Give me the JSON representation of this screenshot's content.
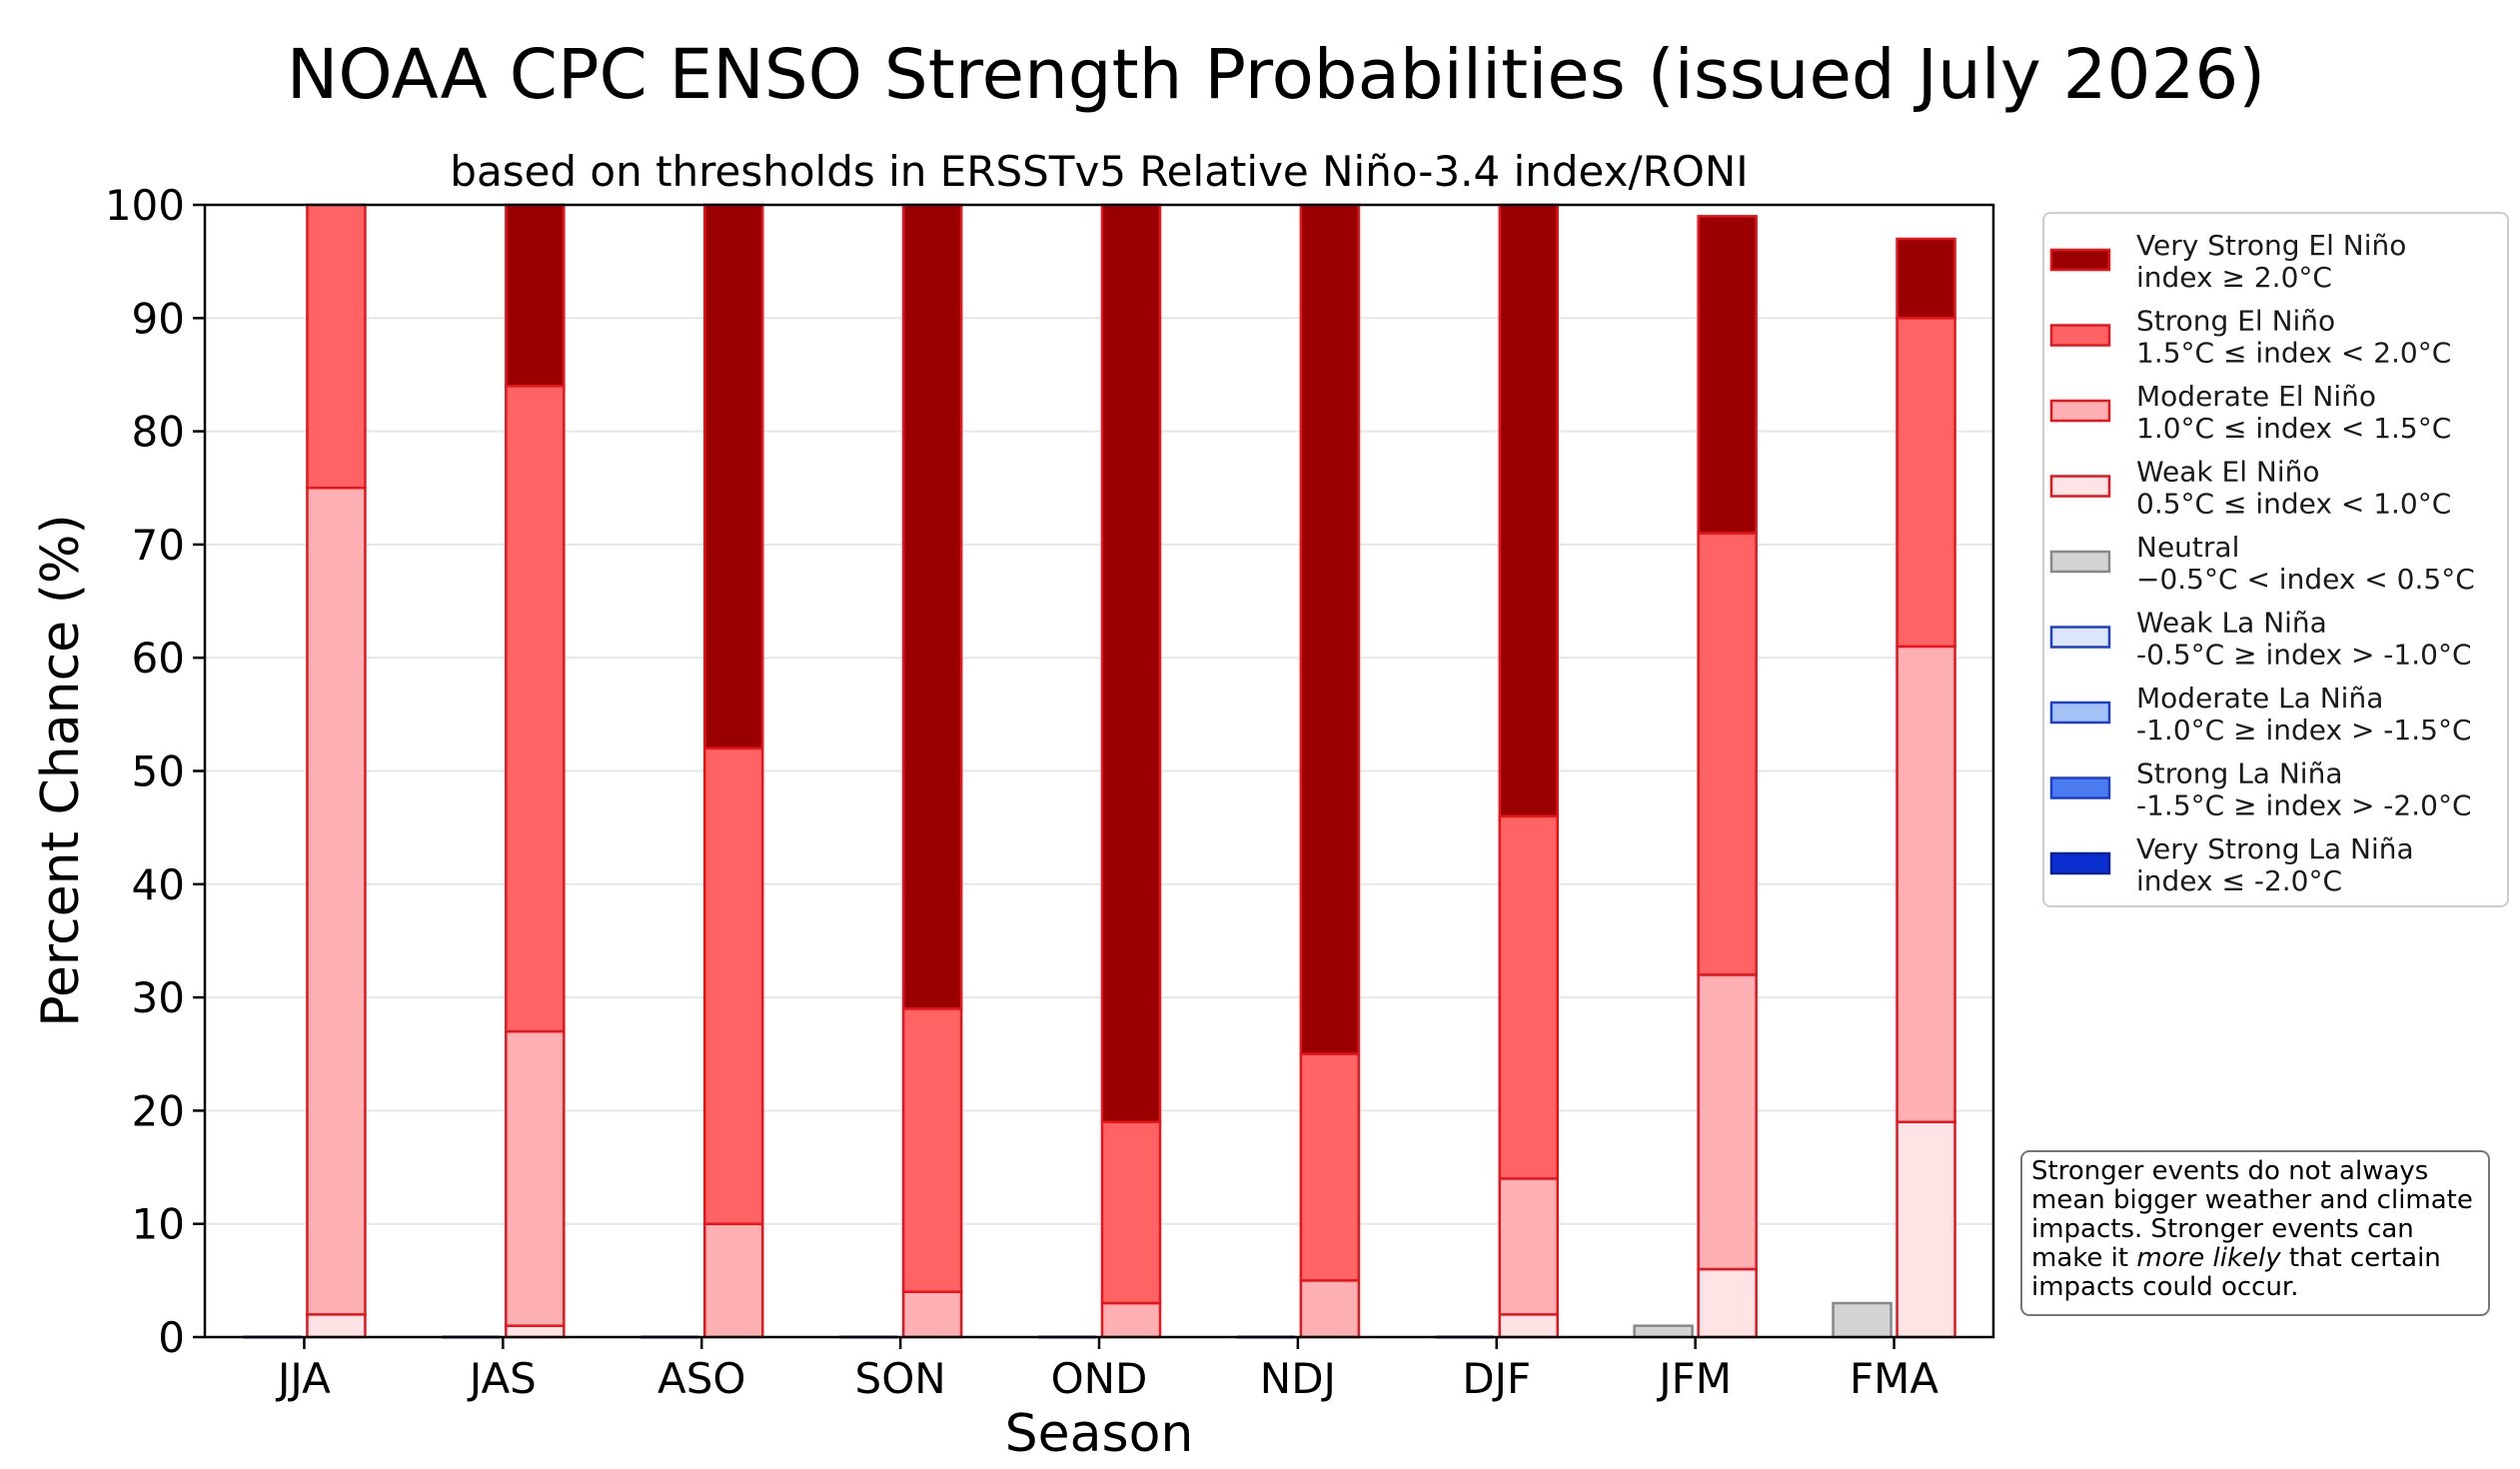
{
  "chart_data": {
    "type": "bar",
    "title": "NOAA CPC ENSO Strength Probabilities (issued July 2026)",
    "subtitle": "based on thresholds in ERSSTv5 Relative Niño-3.4 index/RONI",
    "xlabel": "Season",
    "ylabel": "Percent Chance (%)",
    "ylim": [
      0,
      100
    ],
    "yticks": [
      "0",
      "10",
      "20",
      "30",
      "40",
      "50",
      "60",
      "70",
      "80",
      "90",
      "100"
    ],
    "grid": true,
    "legend_position": "right",
    "categories": [
      "JJA",
      "JAS",
      "ASO",
      "SON",
      "OND",
      "NDJ",
      "DJF",
      "JFM",
      "FMA"
    ],
    "stack_groups": [
      {
        "group": "la-nina-neutral",
        "series": [
          {
            "name": "Very Strong La Niña",
            "range": "index ≤ -2.0°C",
            "color": "#0a2fd0",
            "edge": "#0a1f9a",
            "values": [
              0,
              0,
              0,
              0,
              0,
              0,
              0,
              0,
              0
            ]
          },
          {
            "name": "Strong La Niña",
            "range": "-1.5°C ≥ index > -2.0°C",
            "color": "#4a7cf0",
            "edge": "#1a3fcc",
            "values": [
              0,
              0,
              0,
              0,
              0,
              0,
              0,
              0,
              0
            ]
          },
          {
            "name": "Moderate La Niña",
            "range": "-1.0°C ≥ index > -1.5°C",
            "color": "#a4c2f4",
            "edge": "#1a3fcc",
            "values": [
              0,
              0,
              0,
              0,
              0,
              0,
              0,
              0,
              0
            ]
          },
          {
            "name": "Weak La Niña",
            "range": "-0.5°C ≥ index > -1.0°C",
            "color": "#dbe6fb",
            "edge": "#1a3fcc",
            "values": [
              0,
              0,
              0,
              0,
              0,
              0,
              0,
              0,
              0
            ]
          },
          {
            "name": "Neutral",
            "range": "−0.5°C < index < 0.5°C",
            "color": "#d3d3d3",
            "edge": "#888888",
            "values": [
              0,
              0,
              0,
              0,
              0,
              0,
              0,
              1,
              3
            ]
          }
        ]
      },
      {
        "group": "el-nino",
        "series": [
          {
            "name": "Weak El Niño",
            "range": "0.5°C ≤ index < 1.0°C",
            "color": "#ffe4e6",
            "edge": "#e8141c",
            "values": [
              2,
              1,
              0,
              0,
              0,
              0,
              2,
              6,
              19
            ]
          },
          {
            "name": "Moderate El Niño",
            "range": "1.0°C ≤ index < 1.5°C",
            "color": "#ffb0b3",
            "edge": "#e8141c",
            "values": [
              73,
              26,
              10,
              4,
              3,
              5,
              12,
              26,
              42
            ]
          },
          {
            "name": "Strong El Niño",
            "range": "1.5°C ≤ index < 2.0°C",
            "color": "#ff6363",
            "edge": "#e8141c",
            "values": [
              25,
              57,
              42,
              25,
              16,
              20,
              32,
              39,
              29
            ]
          },
          {
            "name": "Very Strong El Niño",
            "range": "index ≥ 2.0°C",
            "color": "#9b0000",
            "edge": "#e8141c",
            "values": [
              0,
              16,
              48,
              71,
              81,
              75,
              54,
              28,
              7
            ]
          }
        ]
      }
    ],
    "legend": [
      {
        "label": "Very Strong El Niño",
        "range": "index ≥ 2.0°C",
        "color": "#9b0000",
        "edge": "#e8141c"
      },
      {
        "label": "Strong El Niño",
        "range": "1.5°C ≤ index < 2.0°C",
        "color": "#ff6363",
        "edge": "#e8141c"
      },
      {
        "label": "Moderate El Niño",
        "range": "1.0°C ≤ index < 1.5°C",
        "color": "#ffb0b3",
        "edge": "#e8141c"
      },
      {
        "label": "Weak El Niño",
        "range": "0.5°C ≤ index < 1.0°C",
        "color": "#ffe4e6",
        "edge": "#e8141c"
      },
      {
        "label": "Neutral",
        "range": "−0.5°C < index < 0.5°C",
        "color": "#d3d3d3",
        "edge": "#888888"
      },
      {
        "label": "Weak La Niña",
        "range": "-0.5°C ≥ index > -1.0°C",
        "color": "#dbe6fb",
        "edge": "#1a3fcc"
      },
      {
        "label": "Moderate La Niña",
        "range": "-1.0°C ≥ index > -1.5°C",
        "color": "#a4c2f4",
        "edge": "#1a3fcc"
      },
      {
        "label": "Strong La Niña",
        "range": "-1.5°C ≥ index > -2.0°C",
        "color": "#4a7cf0",
        "edge": "#1a3fcc"
      },
      {
        "label": "Very Strong La Niña",
        "range": "index ≤ -2.0°C",
        "color": "#0a2fd0",
        "edge": "#0a1f9a"
      }
    ],
    "annotation": {
      "lines": [
        [
          {
            "text": "Stronger events do not always",
            "italic": false
          }
        ],
        [
          {
            "text": "mean bigger weather and climate",
            "italic": false
          }
        ],
        [
          {
            "text": "impacts. Stronger events can",
            "italic": false
          }
        ],
        [
          {
            "text": "make it ",
            "italic": false
          },
          {
            "text": "more likely",
            "italic": true
          },
          {
            "text": " that certain",
            "italic": false
          }
        ],
        [
          {
            "text": "impacts could occur.",
            "italic": false
          }
        ]
      ]
    }
  }
}
